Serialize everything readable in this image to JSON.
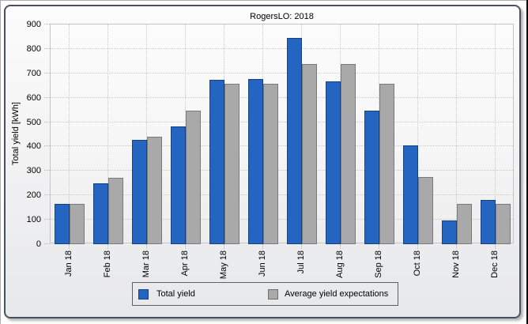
{
  "window": {
    "background_color": "#ffffff",
    "panel_border_color": "#48515e",
    "edge_line_color": "#adadad",
    "right_edge_color": "#0a0a0a"
  },
  "chart_data": {
    "type": "bar",
    "title": "RogersLO: 2018",
    "xlabel": "",
    "ylabel": "Total yield [kWh]",
    "ylim": [
      0,
      900
    ],
    "ytick_step": 100,
    "grid": "dotted",
    "legend_position": "bottom",
    "categories": [
      "Jan 18",
      "Feb 18",
      "Mar 18",
      "Apr 18",
      "May 18",
      "Jun 18",
      "Jul 18",
      "Aug 18",
      "Sep 18",
      "Oct 18",
      "Nov 18",
      "Dec 18"
    ],
    "series": [
      {
        "name": "Total yield",
        "color": "#2565c2",
        "border_color": "#17417f",
        "values": [
          163,
          246,
          424,
          480,
          670,
          674,
          842,
          664,
          545,
          401,
          93,
          177
        ]
      },
      {
        "name": "Average yield expectations",
        "color": "#a9a9a9",
        "border_color": "#7a7a7a",
        "values": [
          163,
          270,
          436,
          545,
          654,
          654,
          736,
          736,
          655,
          272,
          162,
          162
        ]
      }
    ]
  }
}
